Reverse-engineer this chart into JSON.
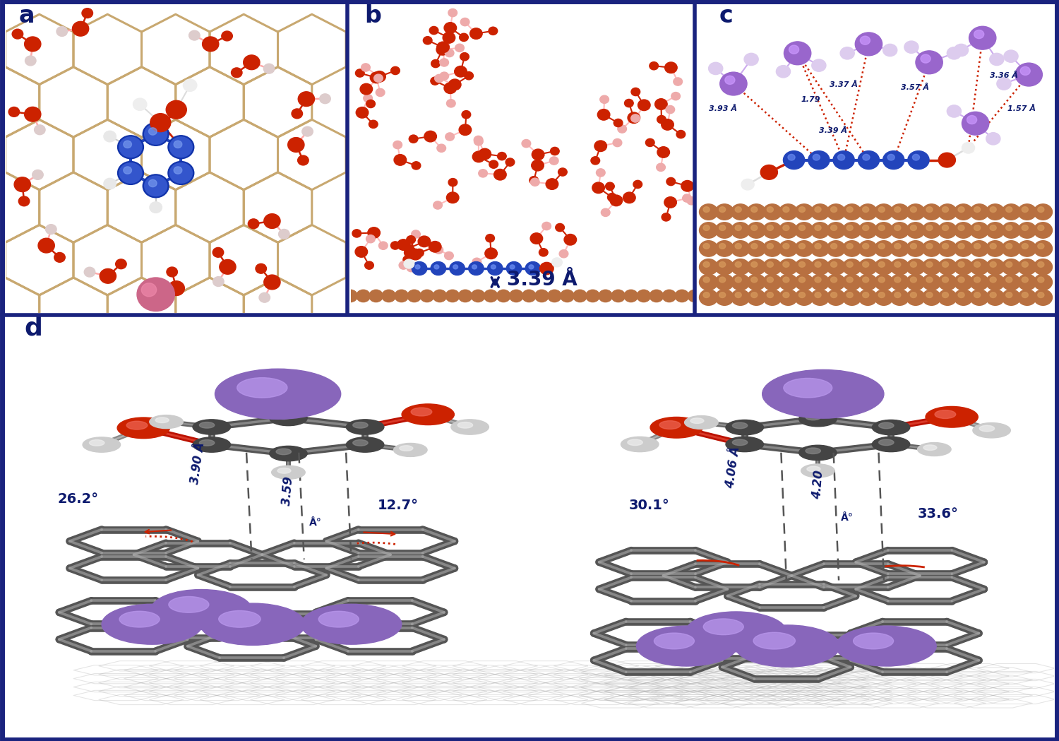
{
  "bg_color": "#ffffff",
  "border_color": "#1a237e",
  "border_width": 4,
  "panel_labels": [
    "a",
    "b",
    "c",
    "d"
  ],
  "panel_label_color": "#0d1a6e",
  "panel_label_fontsize": 22,
  "panel_label_fontstyle": "bold",
  "graphene_color": "#c8a870",
  "graphite_surface_color": "#444444",
  "carbon_atom_color": "#b87040",
  "blue_atom_color": "#2244bb",
  "red_atom_color": "#cc2200",
  "pink_atom_color": "#cc7799",
  "white_atom_color": "#e8e8e8",
  "purple_atom_color": "#8866bb",
  "gray_tube_color": "#666666",
  "gray_tube_light": "#aaaaaa",
  "annotation_color_dark": "#0d1a6e",
  "annotation_color_red": "#cc2200",
  "measurements": {
    "b_distance": "3.39 Å",
    "c_distances": [
      "3.93 Å",
      "1.79",
      "3.37 Å",
      "3.57 Å",
      "3.39 Å",
      "1.57 Å",
      "3.36 Å"
    ],
    "d_left": [
      "26.2°",
      "3.90 Å",
      "3.59\nÅ",
      "12.7°"
    ],
    "d_right": [
      "30.1°",
      "4.06 Å",
      "4.20\nÅ",
      "33.6°"
    ]
  }
}
